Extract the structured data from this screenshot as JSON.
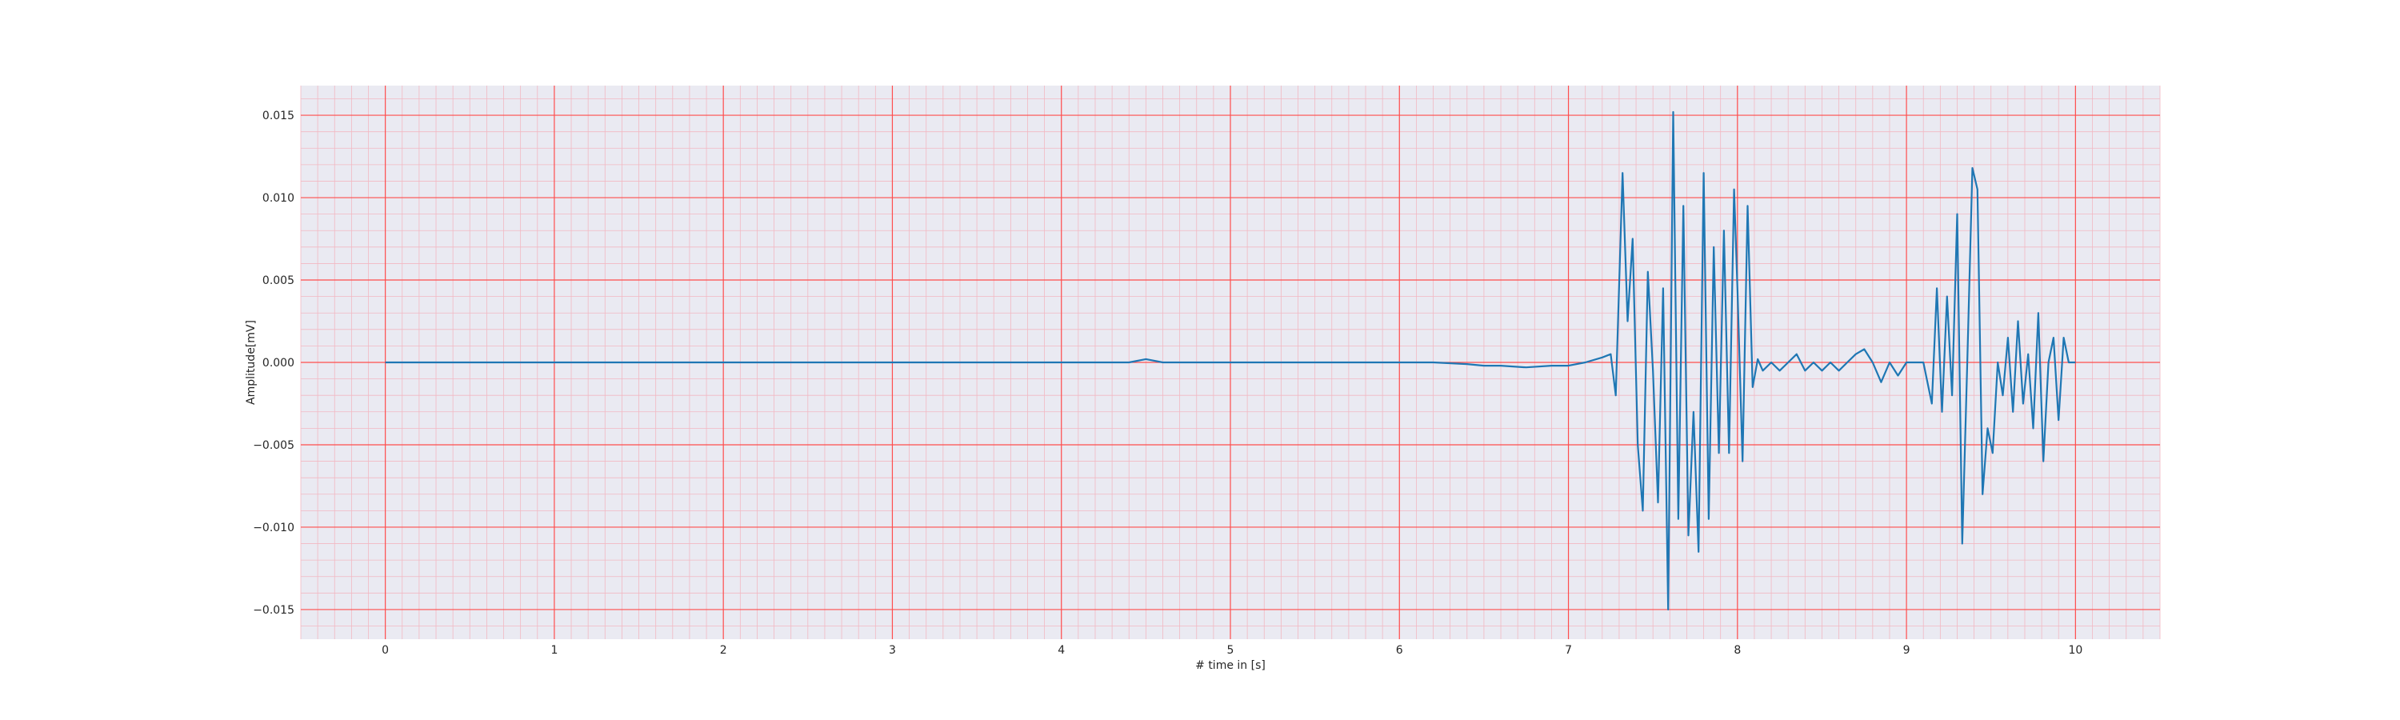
{
  "chart_data": {
    "type": "line",
    "title": "",
    "xlabel": "# time in [s]",
    "ylabel": "Amplitude[mV]",
    "xlim": [
      -0.5,
      10.5
    ],
    "ylim": [
      -0.0168,
      0.0168
    ],
    "xticks": [
      0,
      1,
      2,
      3,
      4,
      5,
      6,
      7,
      8,
      9,
      10
    ],
    "yticks": [
      -0.015,
      -0.01,
      -0.005,
      0.0,
      0.005,
      0.01,
      0.015
    ],
    "ytick_labels": [
      "−0.015",
      "−0.010",
      "−0.005",
      "0.000",
      "0.005",
      "0.010",
      "0.015"
    ],
    "xtick_labels": [
      "0",
      "1",
      "2",
      "3",
      "4",
      "5",
      "6",
      "7",
      "8",
      "9",
      "10"
    ],
    "grid": {
      "major": true,
      "minor": true,
      "major_color": "#ff4d4d",
      "minor_color": "#f2b8c2"
    },
    "colors": {
      "plot_background": "#eaeaf2",
      "line": "#1f77b4",
      "figure_background": "#ffffff"
    },
    "series": [
      {
        "values_x": [
          0,
          0.25,
          0.5,
          0.75,
          1.0,
          1.25,
          1.5,
          1.75,
          2.0,
          2.25,
          2.5,
          2.75,
          3.0,
          3.25,
          3.5,
          3.75,
          4.0,
          4.25,
          4.4,
          4.5,
          4.6,
          4.75,
          5.0,
          5.25,
          5.5,
          5.75,
          6.0,
          6.2,
          6.4,
          6.5,
          6.6,
          6.75,
          6.9,
          7.0,
          7.1,
          7.2,
          7.25,
          7.28,
          7.32,
          7.35,
          7.38,
          7.41,
          7.44,
          7.47,
          7.5,
          7.53,
          7.56,
          7.59,
          7.62,
          7.65,
          7.68,
          7.71,
          7.74,
          7.77,
          7.8,
          7.83,
          7.86,
          7.89,
          7.92,
          7.95,
          7.98,
          8.0,
          8.03,
          8.06,
          8.09,
          8.12,
          8.15,
          8.2,
          8.25,
          8.3,
          8.35,
          8.4,
          8.45,
          8.5,
          8.55,
          8.6,
          8.65,
          8.7,
          8.75,
          8.8,
          8.85,
          8.9,
          8.95,
          9.0,
          9.05,
          9.1,
          9.15,
          9.18,
          9.21,
          9.24,
          9.27,
          9.3,
          9.33,
          9.36,
          9.39,
          9.42,
          9.45,
          9.48,
          9.51,
          9.54,
          9.57,
          9.6,
          9.63,
          9.66,
          9.69,
          9.72,
          9.75,
          9.78,
          9.81,
          9.84,
          9.87,
          9.9,
          9.93,
          9.96,
          10.0
        ],
        "values_y": [
          0.0,
          0.0,
          0.0,
          0.0,
          0.0,
          0.0,
          0.0,
          0.0,
          0.0,
          0.0,
          0.0,
          0.0,
          0.0,
          0.0,
          0.0,
          0.0,
          0.0,
          0.0,
          0.0,
          0.0002,
          0.0,
          0.0,
          0.0,
          0.0,
          0.0,
          0.0,
          0.0,
          0.0,
          -0.0001,
          -0.0002,
          -0.0002,
          -0.0003,
          -0.0002,
          -0.0002,
          0.0,
          0.0003,
          0.0005,
          -0.002,
          0.0115,
          0.0025,
          0.0075,
          -0.005,
          -0.009,
          0.0055,
          -0.0005,
          -0.0085,
          0.0045,
          -0.015,
          0.0152,
          -0.0095,
          0.0095,
          -0.0105,
          -0.003,
          -0.0115,
          0.0115,
          -0.0095,
          0.007,
          -0.0055,
          0.008,
          -0.0055,
          0.0105,
          0.0045,
          -0.006,
          0.0095,
          -0.0015,
          0.0002,
          -0.0005,
          0.0,
          -0.0005,
          0.0,
          0.0005,
          -0.0005,
          0.0,
          -0.0005,
          0.0,
          -0.0005,
          0.0,
          0.0005,
          0.0008,
          0.0,
          -0.0012,
          0.0,
          -0.0008,
          0.0,
          0.0,
          0.0,
          -0.0025,
          0.0045,
          -0.003,
          0.004,
          -0.002,
          0.009,
          -0.011,
          0.0,
          0.0118,
          0.0105,
          -0.008,
          -0.004,
          -0.0055,
          0.0,
          -0.002,
          0.0015,
          -0.003,
          0.0025,
          -0.0025,
          0.0005,
          -0.004,
          0.003,
          -0.006,
          0.0,
          0.0015,
          -0.0035,
          0.0015,
          0.0,
          0.0
        ]
      }
    ]
  }
}
